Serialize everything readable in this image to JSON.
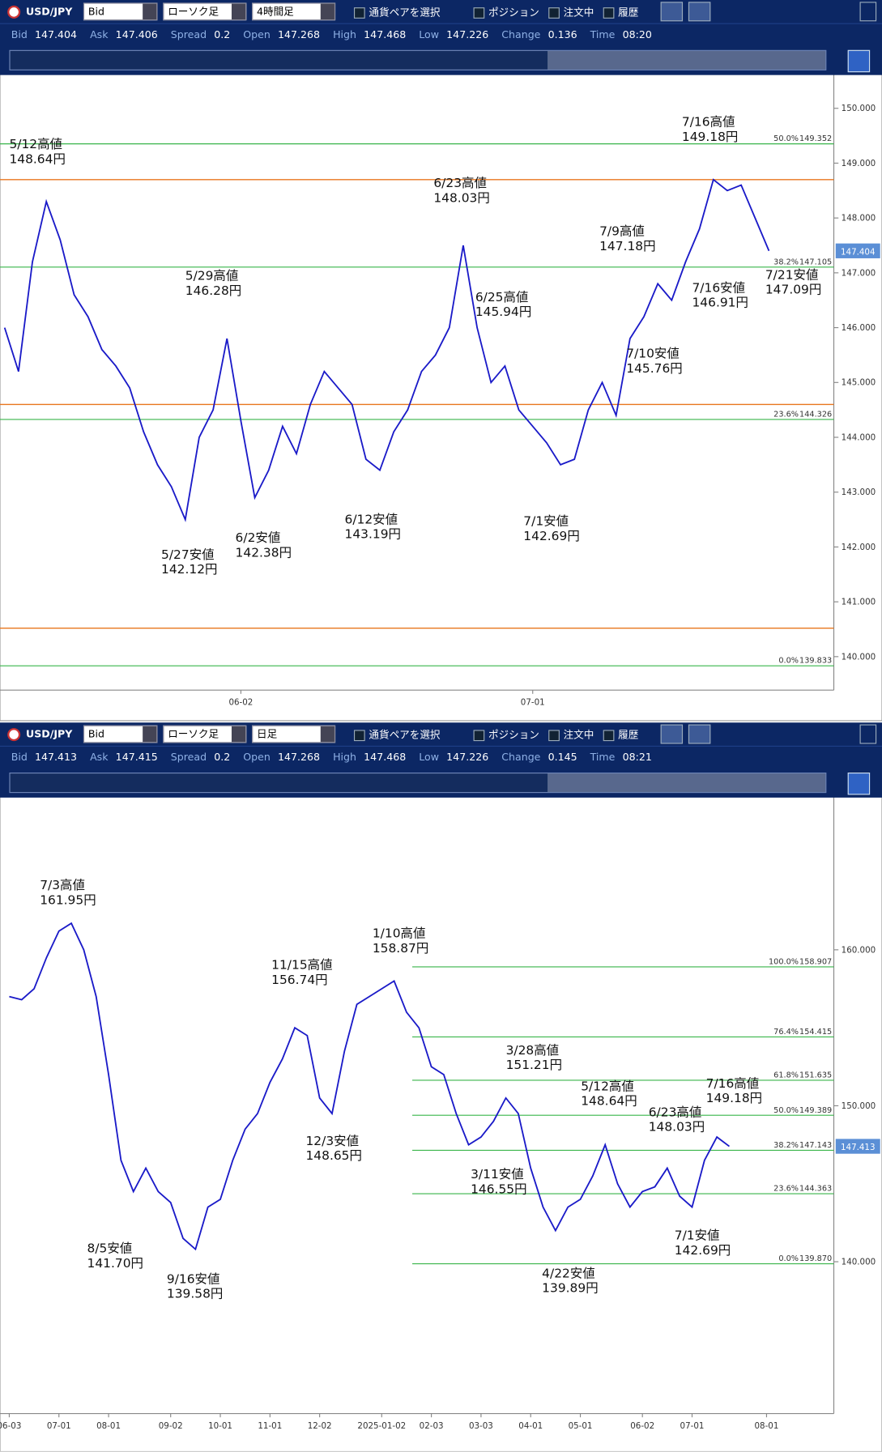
{
  "panels": [
    {
      "toolbar": {
        "pair": "USD/JPY",
        "price": "Bid",
        "chart_style": "ローソク足",
        "timeframe": "4時間足",
        "pair_select": "通貨ペアを選択",
        "toggles": [
          "ポジション",
          "注文中",
          "履歴"
        ]
      },
      "quote": [
        {
          "label": "Bid",
          "value": "147.404"
        },
        {
          "label": "Ask",
          "value": "147.406"
        },
        {
          "label": "Spread",
          "value": "0.2"
        },
        {
          "label": "Open",
          "value": "147.268"
        },
        {
          "label": "High",
          "value": "147.468"
        },
        {
          "label": "Low",
          "value": "147.226"
        },
        {
          "label": "Change",
          "value": "0.136"
        },
        {
          "label": "Time",
          "value": "08:20"
        }
      ],
      "chart_data": {
        "type": "line",
        "color": "#1a1ac8",
        "categories": [
          null,
          null,
          null,
          null,
          null,
          null,
          null,
          null,
          null,
          null,
          null,
          null,
          null,
          null,
          null,
          null,
          null,
          "06-02",
          null,
          null,
          null,
          null,
          null,
          null,
          null,
          null,
          null,
          null,
          null,
          null,
          null,
          null,
          null,
          null,
          null,
          null,
          null,
          null,
          "07-01",
          null,
          null,
          null,
          null,
          null,
          null,
          null,
          null,
          null,
          null,
          null,
          null,
          null,
          null,
          null,
          null,
          null
        ],
        "values": [
          146.0,
          145.2,
          147.2,
          148.3,
          147.6,
          146.6,
          146.2,
          145.6,
          145.3,
          144.9,
          144.1,
          143.5,
          143.1,
          142.5,
          144.0,
          144.5,
          145.8,
          144.3,
          142.9,
          143.4,
          144.2,
          143.7,
          144.6,
          145.2,
          144.9,
          144.6,
          143.6,
          143.4,
          144.1,
          144.5,
          145.2,
          145.5,
          146.0,
          147.5,
          146.0,
          145.0,
          145.3,
          144.5,
          144.2,
          143.9,
          143.5,
          143.6,
          144.5,
          145.0,
          144.4,
          145.8,
          146.2,
          146.8,
          146.5,
          147.2,
          147.8,
          148.7,
          148.5,
          148.6,
          148.0,
          147.4
        ],
        "ylim": [
          139.44,
          150.59
        ],
        "yticks": [
          {
            "value": 150,
            "label": "150.000"
          },
          {
            "value": 149,
            "label": "149.000"
          },
          {
            "value": 148,
            "label": "148.000"
          },
          {
            "value": 147,
            "label": "147.000"
          },
          {
            "value": 146,
            "label": "146.000"
          },
          {
            "value": 145,
            "label": "145.000"
          },
          {
            "value": 144,
            "label": "144.000"
          },
          {
            "value": 143,
            "label": "143.000"
          },
          {
            "value": 142,
            "label": "142.000"
          },
          {
            "value": 141,
            "label": "141.000"
          },
          {
            "value": 140,
            "label": "140.000"
          }
        ],
        "fib_levels": [
          {
            "pct": "50.0%",
            "value": 149.352
          },
          {
            "pct": "38.2%",
            "value": 147.105
          },
          {
            "pct": "23.6%",
            "value": 144.326
          },
          {
            "pct": "0.0%",
            "value": 139.833
          }
        ],
        "orange_levels": [
          148.7,
          144.6,
          140.52
        ],
        "annotations": [
          {
            "event": "5/12高値",
            "price": "148.64円"
          },
          {
            "event": "5/29高値",
            "price": "146.28円"
          },
          {
            "event": "6/23高値",
            "price": "148.03円"
          },
          {
            "event": "6/25高値",
            "price": "145.94円"
          },
          {
            "event": "7/9高値",
            "price": "147.18円"
          },
          {
            "event": "7/16高値",
            "price": "149.18円"
          },
          {
            "event": "7/21安値",
            "price": "147.09円"
          },
          {
            "event": "7/16安値",
            "price": "146.91円"
          },
          {
            "event": "7/10安値",
            "price": "145.76円"
          },
          {
            "event": "5/27安値",
            "price": "142.12円"
          },
          {
            "event": "6/2安値",
            "price": "142.38円"
          },
          {
            "event": "6/12安値",
            "price": "143.19円"
          },
          {
            "event": "7/1安値",
            "price": "142.69円"
          }
        ]
      }
    },
    {
      "toolbar": {
        "pair": "USD/JPY",
        "price": "Bid",
        "chart_style": "ローソク足",
        "timeframe": "日足",
        "pair_select": "通貨ペアを選択",
        "toggles": [
          "ポジション",
          "注文中",
          "履歴"
        ]
      },
      "quote": [
        {
          "label": "Bid",
          "value": "147.413"
        },
        {
          "label": "Ask",
          "value": "147.415"
        },
        {
          "label": "Spread",
          "value": "0.2"
        },
        {
          "label": "Open",
          "value": "147.268"
        },
        {
          "label": "High",
          "value": "147.468"
        },
        {
          "label": "Low",
          "value": "147.226"
        },
        {
          "label": "Change",
          "value": "0.145"
        },
        {
          "label": "Time",
          "value": "08:21"
        }
      ],
      "chart_data": {
        "type": "line",
        "color": "#1a1ac8",
        "categories": [
          "06-03",
          null,
          null,
          null,
          "07-01",
          null,
          null,
          null,
          "08-01",
          null,
          null,
          null,
          null,
          "09-02",
          null,
          null,
          null,
          "10-01",
          null,
          null,
          null,
          "11-01",
          null,
          null,
          null,
          "12-02",
          null,
          null,
          null,
          null,
          "2025-01-02",
          null,
          null,
          null,
          "02-03",
          null,
          null,
          null,
          "03-03",
          null,
          null,
          null,
          "04-01",
          null,
          null,
          null,
          "05-01",
          null,
          null,
          null,
          null,
          "06-02",
          null,
          null,
          null,
          "07-01",
          null,
          null,
          null,
          null,
          null,
          "08-01"
        ],
        "values": [
          157.0,
          156.8,
          157.5,
          159.5,
          161.2,
          161.7,
          160.0,
          157.0,
          152.0,
          146.5,
          144.5,
          146.0,
          144.5,
          143.8,
          141.5,
          140.8,
          143.5,
          144.0,
          146.5,
          148.5,
          149.5,
          151.5,
          153.0,
          155.0,
          154.5,
          150.5,
          149.5,
          153.5,
          156.5,
          157.0,
          157.5,
          158.0,
          156.0,
          155.0,
          152.5,
          152.0,
          149.5,
          147.5,
          148.0,
          149.0,
          150.5,
          149.5,
          146.0,
          143.5,
          142.0,
          143.5,
          144.0,
          145.5,
          147.5,
          145.0,
          143.5,
          144.5,
          144.8,
          146.0,
          144.2,
          143.5,
          146.5,
          148.0,
          147.4,
          null,
          null,
          null
        ],
        "ylim": [
          130.5,
          169.7
        ],
        "yticks": [
          {
            "value": 160,
            "label": "160.000"
          },
          {
            "value": 150,
            "label": "150.000"
          },
          {
            "value": 140,
            "label": "140.000"
          }
        ],
        "fib_levels": [
          {
            "pct": "100.0%",
            "value": 158.907
          },
          {
            "pct": "76.4%",
            "value": 154.415
          },
          {
            "pct": "61.8%",
            "value": 151.635
          },
          {
            "pct": "50.0%",
            "value": 149.389
          },
          {
            "pct": "38.2%",
            "value": 147.143
          },
          {
            "pct": "23.6%",
            "value": 144.363
          },
          {
            "pct": "0.0%",
            "value": {
              "value": 139.87,
              "label": "139.870"
            }
          }
        ],
        "orange_levels": [],
        "annotations": [
          {
            "event": "7/3高値",
            "price": "161.95円"
          },
          {
            "event": "11/15高値",
            "price": "156.74円"
          },
          {
            "event": "1/10高値",
            "price": "158.87円"
          },
          {
            "event": "3/28高値",
            "price": "151.21円"
          },
          {
            "event": "5/12高値",
            "price": "148.64円"
          },
          {
            "event": "7/16高値",
            "price": "149.18円"
          },
          {
            "event": "6/23高値",
            "price": "148.03円"
          },
          {
            "event": "12/3安値",
            "price": "148.65円"
          },
          {
            "event": "3/11安値",
            "price": "146.55円"
          },
          {
            "event": "7/1安値",
            "price": "142.69円"
          },
          {
            "event": "8/5安値",
            "price": "141.70円"
          },
          {
            "event": "9/16安値",
            "price": "139.58円"
          },
          {
            "event": "4/22安値",
            "price": "139.89円"
          }
        ]
      }
    }
  ]
}
